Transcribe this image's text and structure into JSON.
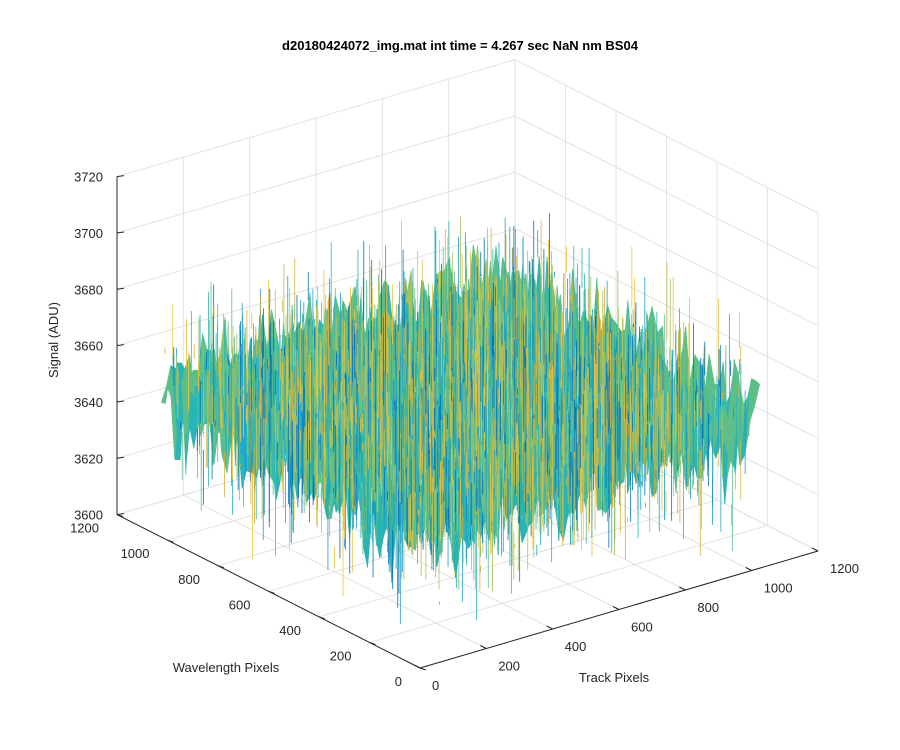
{
  "figure": {
    "title": "d20180424072_img.mat int time = 4.267 sec  NaN nm BS04",
    "background": "#ffffff",
    "axis_color": "#262626",
    "grid_color": "#e2e2e2"
  },
  "chart_data": {
    "type": "surface",
    "title": "d20180424072_img.mat int time = 4.267 sec  NaN nm BS04",
    "xlabel": "Track Pixels",
    "ylabel": "Wavelength Pixels",
    "zlabel": "Signal (ADU)",
    "xlim": [
      0,
      1200
    ],
    "ylim": [
      0,
      1200
    ],
    "zlim": [
      3600,
      3720
    ],
    "xticks": [
      0,
      200,
      400,
      600,
      800,
      1000,
      1200
    ],
    "yticks": [
      0,
      200,
      400,
      600,
      800,
      1000,
      1200
    ],
    "zticks": [
      3600,
      3620,
      3640,
      3660,
      3680,
      3700,
      3720
    ],
    "grid": true,
    "surface_extent": {
      "x": [
        0,
        1024
      ],
      "y": [
        0,
        1024
      ]
    },
    "signal_mean": 3651,
    "signal_range_approx": [
      3612,
      3702
    ],
    "colors": [
      "#0072BD",
      "#1aa0cf",
      "#2ab5b5",
      "#5cbf8a",
      "#a6c25a",
      "#d9b33c",
      "#edc33b"
    ]
  }
}
